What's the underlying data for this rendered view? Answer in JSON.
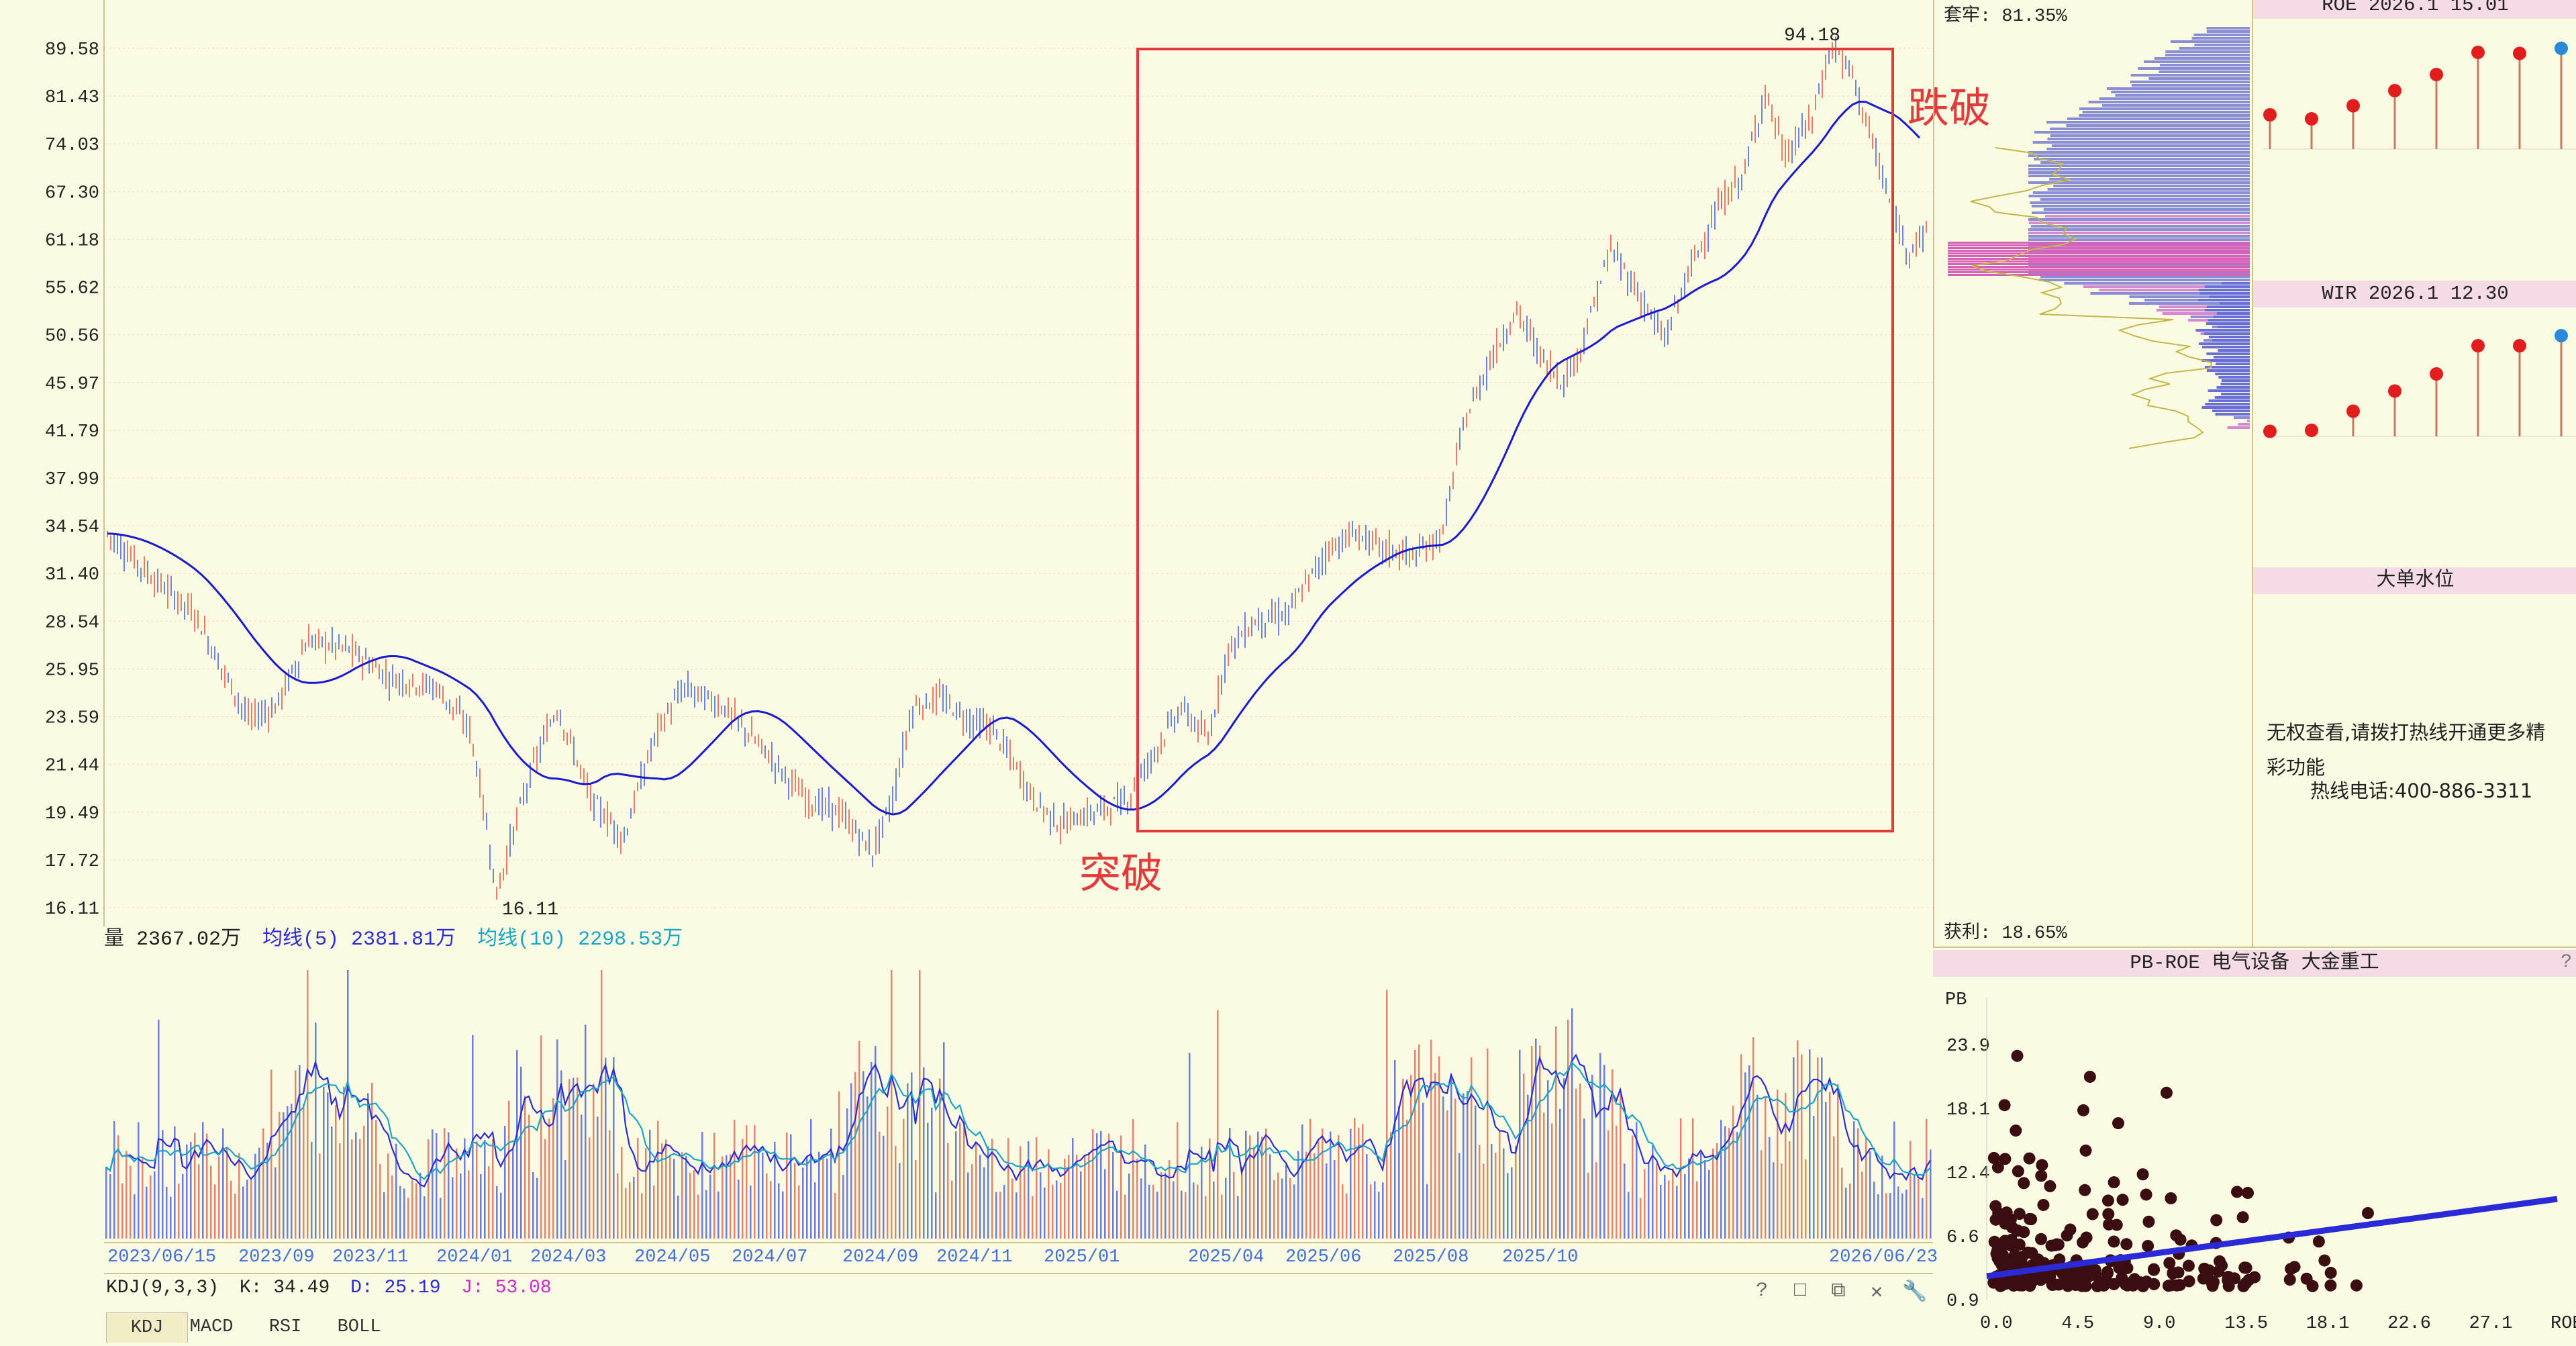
{
  "price_chart": {
    "y_ticks": [
      "89.58",
      "81.43",
      "74.03",
      "67.30",
      "61.18",
      "55.62",
      "50.56",
      "45.97",
      "41.79",
      "37.99",
      "34.54",
      "31.40",
      "28.54",
      "25.95",
      "23.59",
      "21.44",
      "19.49",
      "17.72",
      "16.11"
    ],
    "high_label": "94.18",
    "low_label": "16.11",
    "annotation_breakout": "突破",
    "annotation_breakdown": "跌破"
  },
  "x_axis": [
    "2023/06/15",
    "2023/09",
    "2023/11",
    "2024/01",
    "2024/03",
    "2024/05",
    "2024/07",
    "2024/09",
    "2024/11",
    "2025/01",
    "2025/04",
    "2025/06",
    "2025/08",
    "2025/10",
    "2026/06/23"
  ],
  "volume_legend": {
    "label": "量 2367.02万",
    "ma5": "均线(5) 2381.81万",
    "ma10": "均线(10) 2298.53万",
    "color_ma5": "#2b2bd8",
    "color_ma10": "#1ba4c9"
  },
  "kdj_legend": {
    "label": "KDJ(9,3,3)",
    "k": "K: 34.49",
    "d": "D: 25.19",
    "j": "J: 53.08",
    "color_d": "#2b2bd8",
    "color_j": "#cc2bcc"
  },
  "tabs": [
    "KDJ",
    "MACD",
    "RSI",
    "BOLL"
  ],
  "chip_panel": {
    "trapped": "套牢: 81.35%",
    "profit": "获利: 18.65%"
  },
  "roe_panel": {
    "title": "ROE 2026.1 15.01",
    "values": [
      0.34,
      0.3,
      0.43,
      0.58,
      0.74,
      0.96,
      0.95,
      1.0
    ]
  },
  "wir_panel": {
    "title": "WIR 2026.1 12.30",
    "values": [
      0.05,
      0.06,
      0.25,
      0.45,
      0.62,
      0.9,
      0.9,
      1.0
    ]
  },
  "big_order_panel": {
    "title": "大单水位",
    "message": "无权查看,请拨打热线开通更多精彩功能",
    "hotline": "热线电话:400-886-3311"
  },
  "pb_roe_panel": {
    "title": "PB-ROE 电气设备  大金重工",
    "y_label": "PB",
    "y_ticks": [
      "23.9",
      "18.1",
      "12.4",
      "6.6",
      "0.9"
    ],
    "x_ticks": [
      "0.0",
      "4.5",
      "9.0",
      "13.5",
      "18.1",
      "22.6",
      "27.1",
      "ROE"
    ],
    "help": "?"
  },
  "toolbar": [
    "?",
    "□",
    "⧉",
    "✕",
    "🔧"
  ]
}
